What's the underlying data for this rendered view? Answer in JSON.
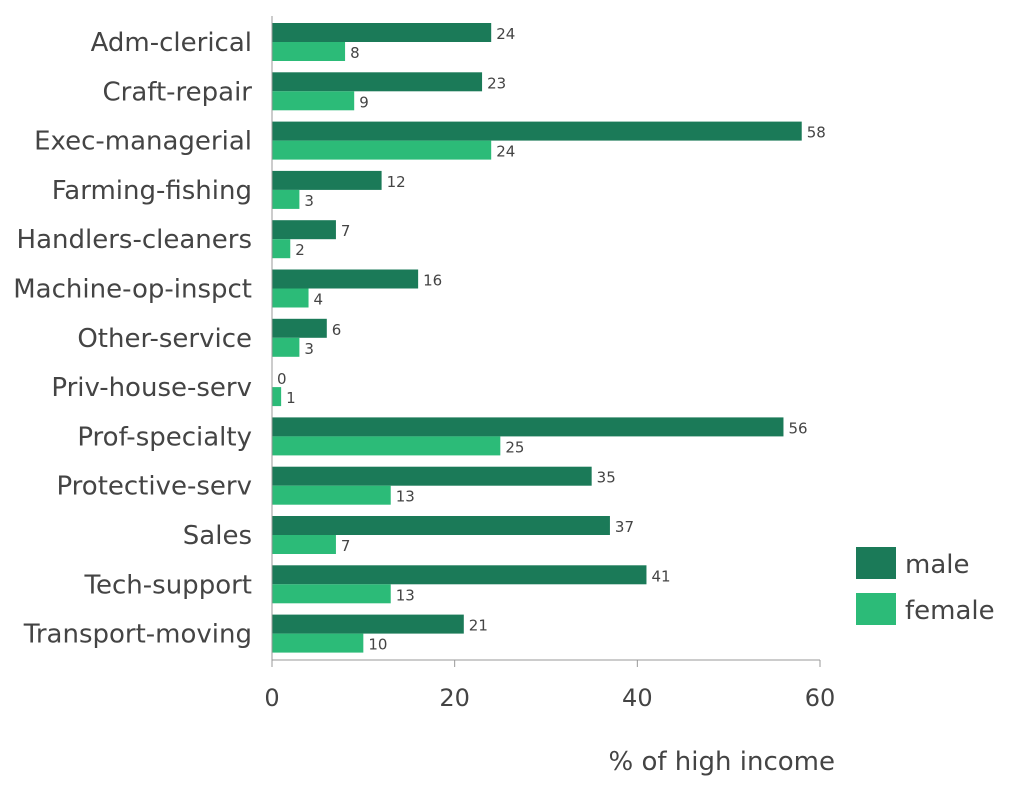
{
  "chart_data": {
    "type": "bar",
    "orientation": "horizontal",
    "categories": [
      "Adm-clerical",
      "Craft-repair",
      "Exec-managerial",
      "Farming-fishing",
      "Handlers-cleaners",
      "Machine-op-inspct",
      "Other-service",
      "Priv-house-serv",
      "Prof-specialty",
      "Protective-serv",
      "Sales",
      "Tech-support",
      "Transport-moving"
    ],
    "series": [
      {
        "name": "male",
        "color": "#1b7a58",
        "values": [
          24,
          23,
          58,
          12,
          7,
          16,
          6,
          0,
          56,
          35,
          37,
          41,
          21
        ]
      },
      {
        "name": "female",
        "color": "#2cbb78",
        "values": [
          8,
          9,
          24,
          3,
          2,
          4,
          3,
          1,
          25,
          13,
          7,
          13,
          10
        ]
      }
    ],
    "xlabel": "% of high income",
    "xlim": [
      0,
      60
    ],
    "xticks": [
      0,
      20,
      40,
      60
    ],
    "grid": false,
    "legend_position": "bottom-right"
  }
}
